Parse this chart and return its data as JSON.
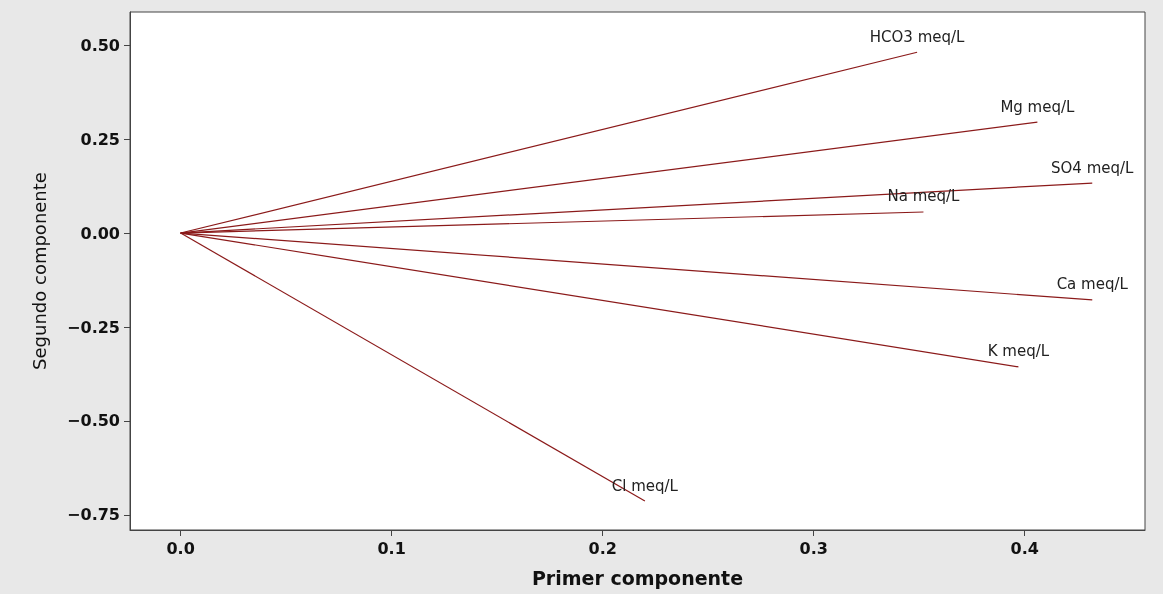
{
  "chart_data": {
    "type": "line",
    "xlabel": "Primer componente",
    "ylabel": "Segundo componente",
    "marker": "none",
    "legend": false,
    "xlim": [
      -0.024,
      0.457
    ],
    "ylim": [
      -0.79,
      0.588
    ],
    "xticks": [
      {
        "value": 0,
        "label": "0.0"
      },
      {
        "value": 0.1,
        "label": "0.1"
      },
      {
        "value": 0.2,
        "label": "0.2"
      },
      {
        "value": 0.3,
        "label": "0.3"
      },
      {
        "value": 0.4,
        "label": "0.4"
      }
    ],
    "yticks": [
      {
        "value": -0.75,
        "label": "−0.75"
      },
      {
        "value": -0.5,
        "label": "−0.50"
      },
      {
        "value": -0.25,
        "label": "−0.25"
      },
      {
        "value": 0,
        "label": "0.00"
      },
      {
        "value": 0.25,
        "label": "0.25"
      },
      {
        "value": 0.5,
        "label": "0.50"
      }
    ],
    "series": [
      {
        "name": "HCO3 meq/L",
        "color": "#8b1a1a",
        "x": [
          0,
          0.349
        ],
        "values": [
          0,
          0.481
        ]
      },
      {
        "name": "Mg meq/L",
        "color": "#8b1a1a",
        "x": [
          0,
          0.406
        ],
        "values": [
          0,
          0.295
        ]
      },
      {
        "name": "SO4 meq/L",
        "color": "#8b1a1a",
        "x": [
          0,
          0.432
        ],
        "values": [
          0,
          0.133
        ]
      },
      {
        "name": "Na meq/L",
        "color": "#8b1a1a",
        "x": [
          0,
          0.352
        ],
        "values": [
          0,
          0.056
        ]
      },
      {
        "name": "Ca meq/L",
        "color": "#8b1a1a",
        "x": [
          0,
          0.432
        ],
        "values": [
          0,
          -0.178
        ]
      },
      {
        "name": "K meq/L",
        "color": "#8b1a1a",
        "x": [
          0,
          0.397
        ],
        "values": [
          0,
          -0.356
        ]
      },
      {
        "name": "Cl meq/L",
        "color": "#8b1a1a",
        "x": [
          0,
          0.22
        ],
        "values": [
          0,
          -0.713
        ]
      }
    ]
  }
}
